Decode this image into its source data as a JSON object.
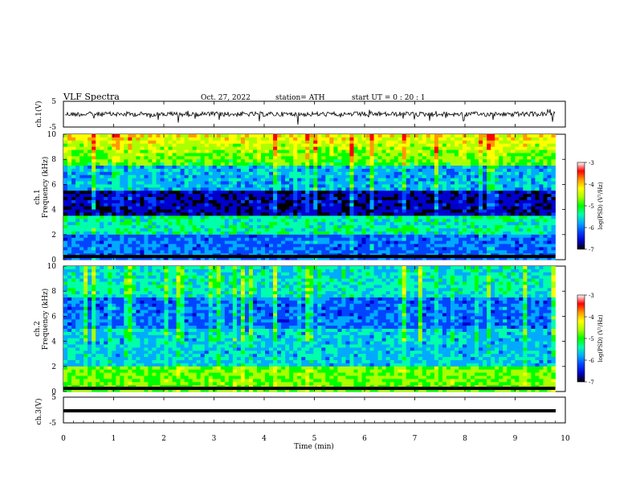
{
  "header": {
    "title": "VLF  Spectra",
    "date": "Oct. 27, 2022",
    "station": "station= ATH",
    "start": "start  UT  =    0  : 20 : 1"
  },
  "chart_data": {
    "type": "heatmap",
    "xlabel": "Time  (min)",
    "xlim": [
      0,
      10
    ],
    "xticks": [
      "0",
      "1",
      "2",
      "3",
      "4",
      "5",
      "6",
      "7",
      "8",
      "9",
      "10"
    ],
    "panels": [
      {
        "id": "ch1-waveform",
        "ylabel": "ch.1(V)",
        "ylim": [
          -5,
          5
        ],
        "yticks": [
          "5",
          "-5"
        ]
      },
      {
        "id": "ch1-spectrogram",
        "ylabel_line1": "ch.1",
        "ylabel_line2": "Frequency  (kHz)",
        "ylim": [
          0,
          10
        ],
        "yticks": [
          "0",
          "2",
          "4",
          "6",
          "8",
          "10"
        ],
        "colorbar": {
          "label": "log(PSD) (V²/Hz)",
          "range": [
            -7,
            -3
          ],
          "ticks": [
            "-3",
            "-4",
            "-5",
            "-6",
            "-7"
          ]
        }
      },
      {
        "id": "ch2-spectrogram",
        "ylabel_line1": "ch.2",
        "ylabel_line2": "Frequency  (kHz)",
        "ylim": [
          0,
          10
        ],
        "yticks": [
          "0",
          "2",
          "4",
          "6",
          "8",
          "10"
        ],
        "colorbar": {
          "label": "log(PSD) (V²/Hz)",
          "range": [
            -7,
            -3
          ],
          "ticks": [
            "-3",
            "-4",
            "-5",
            "-6",
            "-7"
          ]
        }
      },
      {
        "id": "ch3-waveform",
        "ylabel": "ch.3(V)",
        "ylim": [
          -5,
          5
        ],
        "yticks": [
          "5",
          "-5"
        ]
      }
    ],
    "data_end_min": 9.8,
    "colormap": [
      "#000000",
      "#0000cc",
      "#0044ff",
      "#00aaff",
      "#00ffaa",
      "#00ff00",
      "#aaff00",
      "#ffff00",
      "#ff9900",
      "#ff0000",
      "#ffffff"
    ]
  }
}
